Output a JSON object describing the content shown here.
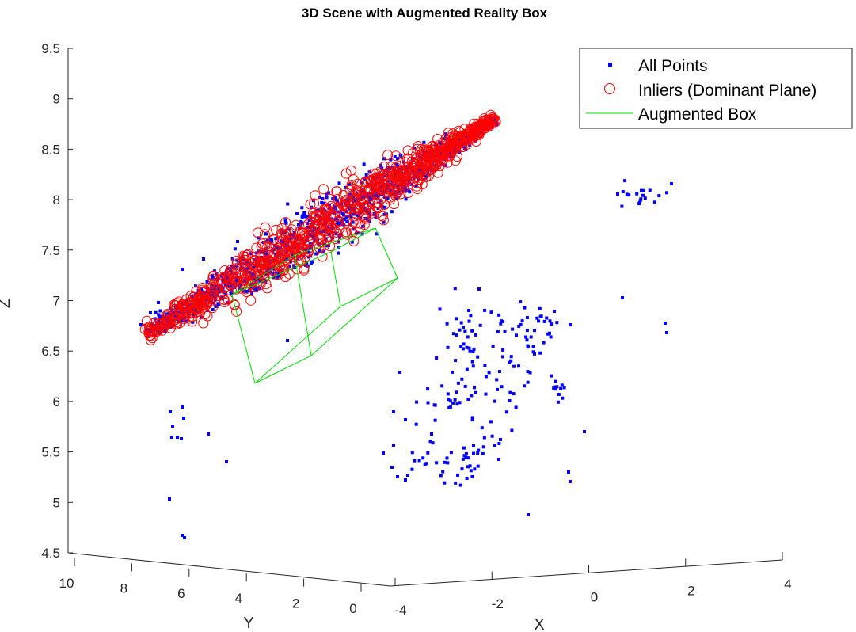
{
  "chart_data": {
    "type": "scatter",
    "title": "3D Scene with Augmented Reality Box",
    "xlabel": "X",
    "ylabel": "Y",
    "zlabel": "Z",
    "xlim": [
      -4,
      4
    ],
    "ylim": [
      0,
      10
    ],
    "zlim": [
      4.5,
      9.5
    ],
    "x_ticks": [
      "-4",
      "-2",
      "0",
      "2",
      "4"
    ],
    "y_ticks": [
      "10",
      "8",
      "6",
      "4",
      "2",
      "0"
    ],
    "z_ticks": [
      "4.5",
      "5",
      "5.5",
      "6",
      "6.5",
      "7",
      "7.5",
      "8",
      "8.5",
      "9",
      "9.5"
    ],
    "grid": false,
    "legend_position": "top-right",
    "legend": [
      {
        "label": "All Points",
        "marker": "dot",
        "color": "#0000ff"
      },
      {
        "label": "Inliers (Dominant Plane)",
        "marker": "circle",
        "color": "#ff0000"
      },
      {
        "label": "Augmented Box",
        "marker": "line",
        "color": "#00dd00"
      }
    ],
    "series": [
      {
        "name": "All Points",
        "marker": "dot",
        "color": "#0000ff",
        "clusters": [
          {
            "region": "dominant-plane",
            "count": 1200
          },
          {
            "region": "right-scattered-objects",
            "count": 220
          },
          {
            "region": "upper-right-cluster",
            "count": 20
          },
          {
            "region": "left-sparse",
            "count": 12
          }
        ]
      },
      {
        "name": "Inliers (Dominant Plane)",
        "marker": "circle",
        "color": "#ff0000",
        "clusters": [
          {
            "region": "dominant-plane",
            "count": 900
          }
        ]
      },
      {
        "name": "Augmented Box",
        "marker": "line",
        "color": "#00dd00",
        "edges": 12
      }
    ]
  }
}
